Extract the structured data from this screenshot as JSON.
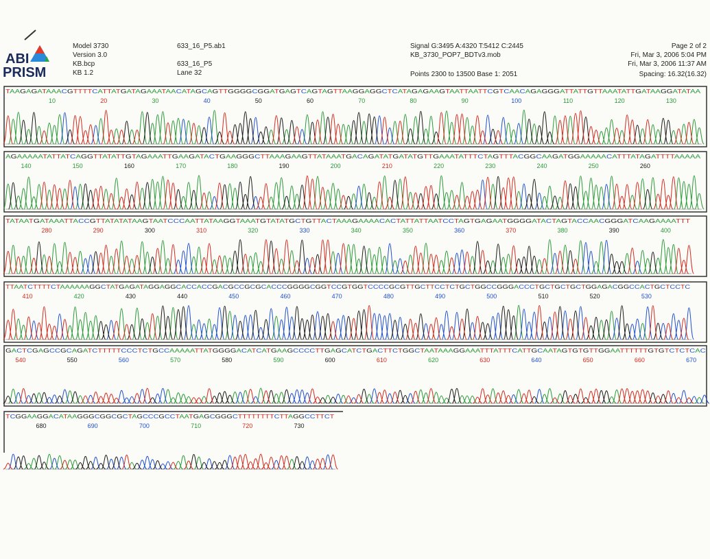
{
  "header": {
    "logo_top": "ABI",
    "logo_bottom": "PRISM",
    "model": "Model 3730",
    "version": "Version 3.0",
    "kb_bcp": "KB.bcp",
    "kb": "KB 1.2",
    "file": "633_16_P5.ab1",
    "sample": "633_16_P5",
    "lane": "Lane 32",
    "signal": "Signal G:3495 A:4320 T:5412 C:2445",
    "mobility": "KB_3730_POP7_BDTv3.mob",
    "points": "Points 2300 to 13500  Base 1: 2051",
    "page": "Page 2 of 2",
    "printed": "Fri, Mar 3, 2006  5:04 PM",
    "run": "Fri, Mar 3, 2006  11:37 AM",
    "spacing": "Spacing: 16.32(16.32)"
  },
  "panels": [
    {
      "sequence": "TAAGAGATAAACGTTTTCATTATGATAGAAATAACATAGCAGTTGGGGCGGATGAGTCAGTAGTTAAGGAGGCTCATAGAGAAGTAATTAATTCGTCAACAGAGGGATTATTGTTAAATATTGATAAGGATATAA",
      "positions": [
        10,
        20,
        30,
        40,
        50,
        60,
        70,
        80,
        90,
        100,
        110,
        120,
        130
      ]
    },
    {
      "sequence": "AGAAAAATATTATCAGGTTATATTGTAGAAATTGAAGATACTGAAGGGCTTAAAGAAGTTATAAATGACAGATATGATATGTTGAAATATTTCTAGTTTACGGCAAGATGGAAAAACATTTATAGATTTTAAAAA",
      "positions": [
        140,
        150,
        160,
        170,
        180,
        190,
        200,
        210,
        220,
        230,
        240,
        250,
        260
      ]
    },
    {
      "sequence": "TATAATGATAAATTACCGTTATATATAAGTAATCCCAATTATAAGGTAAATGTATATGCTGTTACTAAAGAAAACACTATTATTAATCCTAGTGAGAATGGGGATACTAGTACCAACGGGATCAAGAAAATTT",
      "positions": [
        280,
        290,
        300,
        310,
        320,
        330,
        340,
        350,
        360,
        370,
        380,
        390,
        400
      ]
    },
    {
      "sequence": "TTAATCTTTTCTAAAAAAGGCTATGAGATAGGAGGCACCACCGACGCCGCGCACCCGGGGCGGTCCGTGGTCCCCGCGTTGCTTCCTCTGCTGGCCGGGACCCTGCTGCTGCTGGAGACGGCCACTGCTCCTC",
      "positions": [
        410,
        420,
        430,
        440,
        450,
        460,
        470,
        480,
        490,
        500,
        510,
        520,
        530
      ]
    },
    {
      "sequence": "GACTCGAGCCGCAGATCTTTTTCCCTCTGCCAAAAATTATGGGGACATCATGAAGCCCCTTGAGCATCTGACTTCTGGCTAATAAAGGAAATTTATTTCATTGCAATAGTGTGTTGGAATTTTTTGTGTCTCTCAC",
      "positions": [
        540,
        550,
        560,
        570,
        580,
        590,
        600,
        610,
        620,
        630,
        640,
        650,
        660,
        670
      ]
    },
    {
      "sequence": "TCGGAAGGACATAAGGGCGGCGCTAGCCCGCCTAATGAGCGGGCTTTTTTTTCTTAGGCCTTCT",
      "positions": [
        680,
        690,
        700,
        710,
        720,
        730
      ]
    }
  ]
}
